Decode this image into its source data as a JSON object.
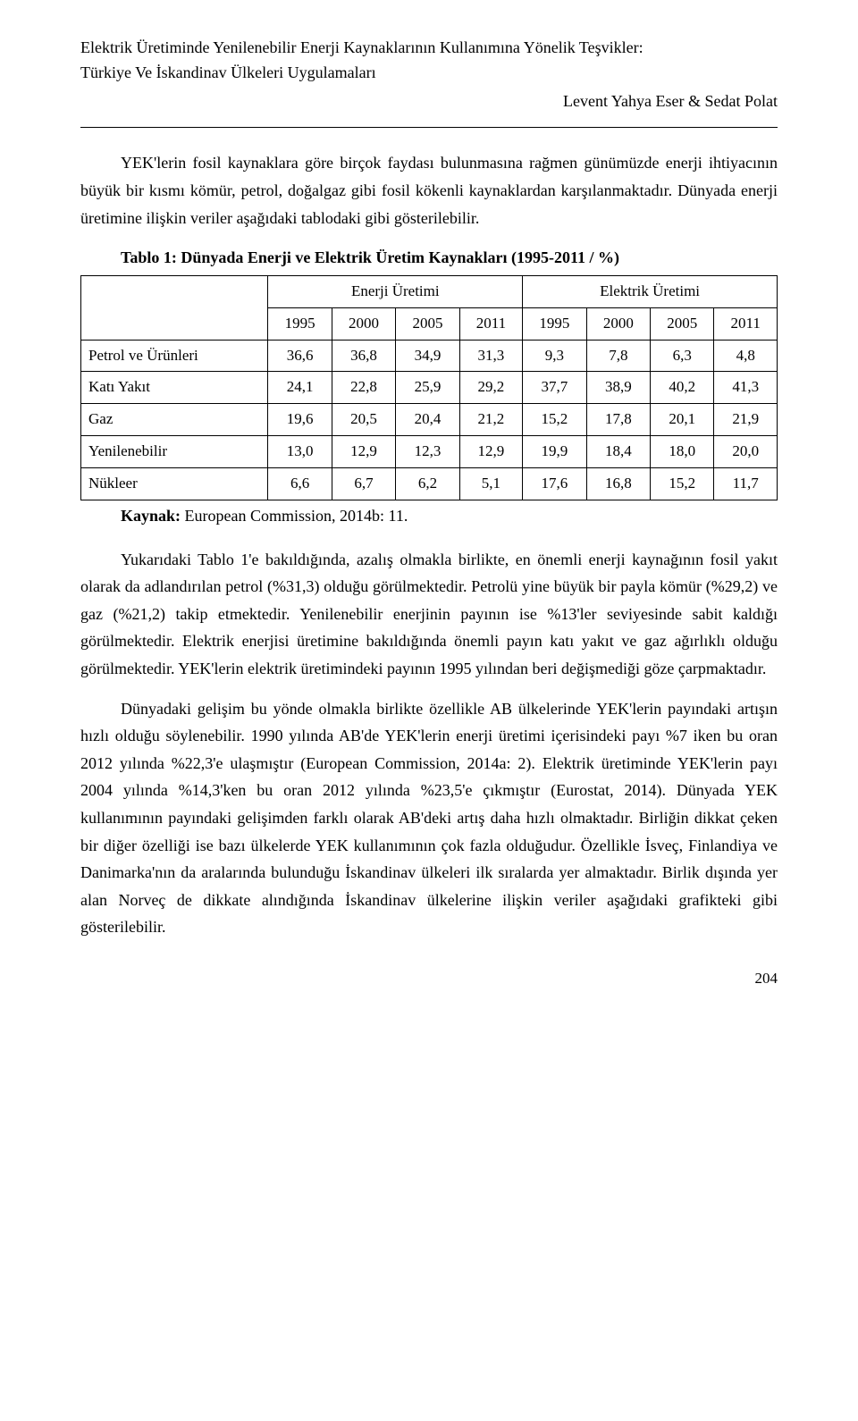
{
  "header": {
    "title_line1": "Elektrik Üretiminde Yenilenebilir Enerji Kaynaklarının Kullanımına Yönelik Teşvikler:",
    "title_line2": "Türkiye Ve İskandinav Ülkeleri Uygulamaları",
    "authors": "Levent Yahya Eser & Sedat Polat"
  },
  "paragraphs": {
    "p1": "YEK'lerin fosil kaynaklara göre birçok faydası bulunmasına rağmen günümüzde enerji ihtiyacının büyük bir kısmı kömür, petrol, doğalgaz gibi fosil kökenli kaynaklardan karşılanmaktadır. Dünyada enerji üretimine ilişkin veriler aşağıdaki tablodaki gibi gösterilebilir.",
    "p2": "Yukarıdaki Tablo 1'e bakıldığında, azalış olmakla birlikte, en önemli enerji kaynağının fosil yakıt olarak da adlandırılan petrol (%31,3) olduğu görülmektedir. Petrolü yine büyük bir payla kömür (%29,2) ve gaz (%21,2) takip etmektedir. Yenilenebilir enerjinin payının ise %13'ler seviyesinde sabit kaldığı görülmektedir. Elektrik enerjisi üretimine bakıldığında önemli payın katı yakıt ve gaz ağırlıklı olduğu görülmektedir. YEK'lerin elektrik üretimindeki payının 1995 yılından beri değişmediği göze çarpmaktadır.",
    "p3": "Dünyadaki gelişim bu yönde olmakla birlikte özellikle AB ülkelerinde YEK'lerin payındaki artışın hızlı olduğu söylenebilir. 1990 yılında AB'de YEK'lerin enerji üretimi içerisindeki payı %7 iken bu oran 2012 yılında %22,3'e ulaşmıştır (European Commission, 2014a: 2). Elektrik üretiminde YEK'lerin payı 2004 yılında %14,3'ken bu oran 2012 yılında %23,5'e çıkmıştır (Eurostat, 2014). Dünyada YEK kullanımının payındaki gelişimden farklı olarak AB'deki artış daha hızlı olmaktadır. Birliğin dikkat çeken bir diğer özelliği ise bazı ülkelerde YEK kullanımının çok fazla olduğudur. Özellikle İsveç, Finlandiya ve Danimarka'nın da aralarında bulunduğu İskandinav ülkeleri ilk sıralarda yer almaktadır. Birlik dışında yer alan Norveç de dikkate alındığında İskandinav ülkelerine ilişkin veriler aşağıdaki grafikteki gibi gösterilebilir."
  },
  "table1": {
    "title": "Tablo 1: Dünyada Enerji ve Elektrik Üretim Kaynakları (1995-2011 / %)",
    "group_headers": [
      "Enerji Üretimi",
      "Elektrik Üretimi"
    ],
    "year_headers": [
      "1995",
      "2000",
      "2005",
      "2011",
      "1995",
      "2000",
      "2005",
      "2011"
    ],
    "rows": [
      {
        "label": "Petrol ve Ürünleri",
        "values": [
          "36,6",
          "36,8",
          "34,9",
          "31,3",
          "9,3",
          "7,8",
          "6,3",
          "4,8"
        ]
      },
      {
        "label": "Katı Yakıt",
        "values": [
          "24,1",
          "22,8",
          "25,9",
          "29,2",
          "37,7",
          "38,9",
          "40,2",
          "41,3"
        ]
      },
      {
        "label": "Gaz",
        "values": [
          "19,6",
          "20,5",
          "20,4",
          "21,2",
          "15,2",
          "17,8",
          "20,1",
          "21,9"
        ]
      },
      {
        "label": "Yenilenebilir",
        "values": [
          "13,0",
          "12,9",
          "12,3",
          "12,9",
          "19,9",
          "18,4",
          "18,0",
          "20,0"
        ]
      },
      {
        "label": "Nükleer",
        "values": [
          "6,6",
          "6,7",
          "6,2",
          "5,1",
          "17,6",
          "16,8",
          "15,2",
          "11,7"
        ]
      }
    ],
    "source_label": "Kaynak:",
    "source_text": " European Commission, 2014b: 11."
  },
  "page_number": "204"
}
